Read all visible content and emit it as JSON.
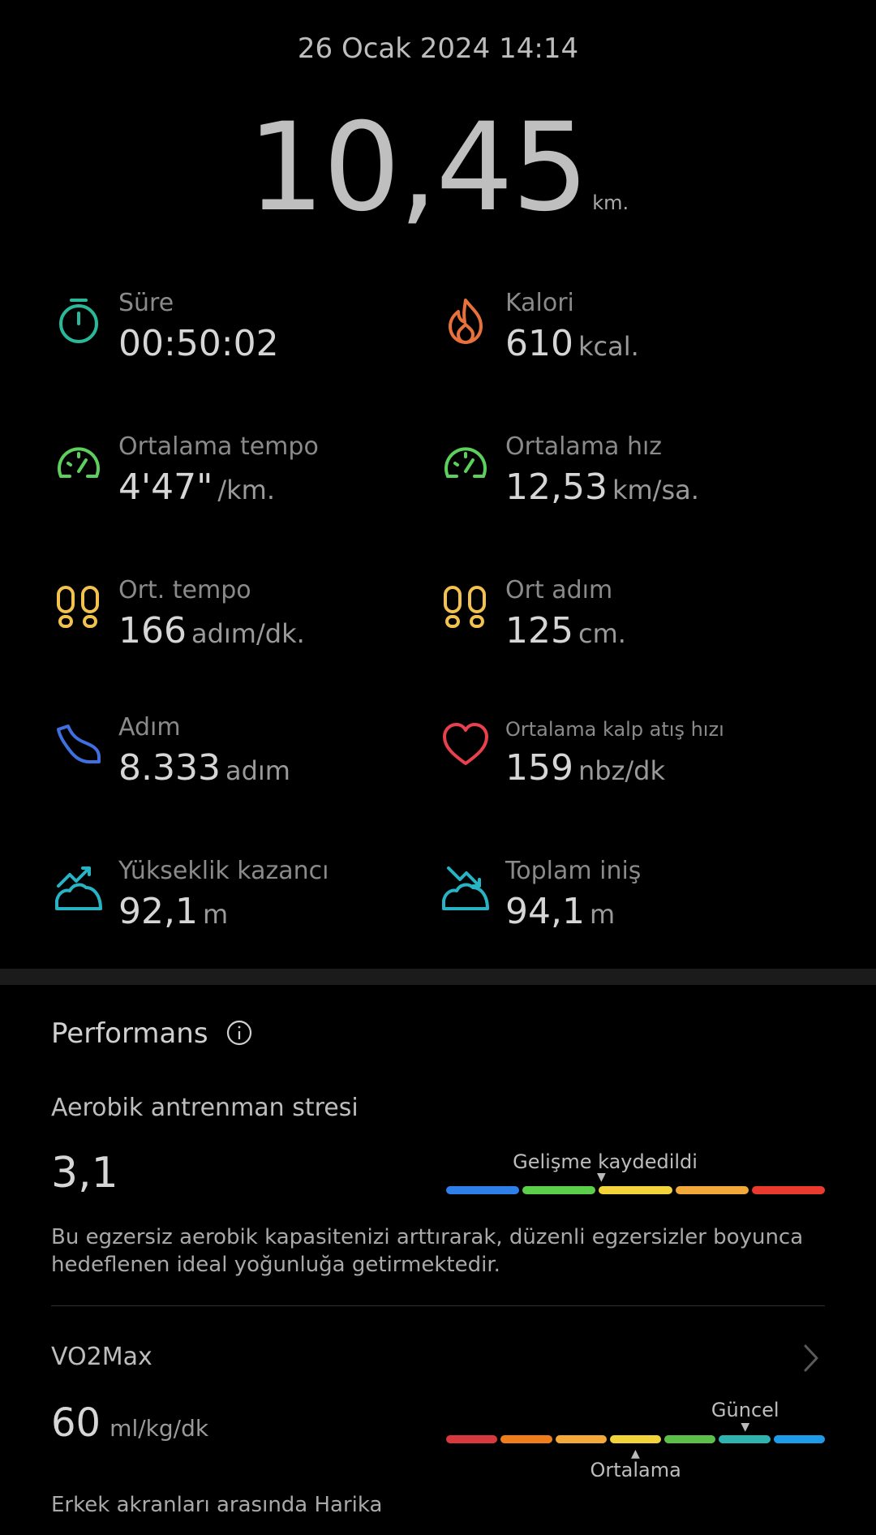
{
  "header": {
    "date": "26 Ocak 2024 14:14",
    "distance_value": "10,45",
    "distance_unit": "km."
  },
  "metrics": [
    {
      "label": "Süre",
      "value": "00:50:02",
      "unit": "",
      "icon": "stopwatch-icon",
      "color": "#2bb79a"
    },
    {
      "label": "Kalori",
      "value": "610",
      "unit": "kcal.",
      "icon": "flame-icon",
      "color": "#e8703a"
    },
    {
      "label": "Ortalama tempo",
      "value": "4'47\"",
      "unit": "/km.",
      "icon": "speedometer-icon",
      "color": "#5ccf5c"
    },
    {
      "label": "Ortalama hız",
      "value": "12,53",
      "unit": "km/sa.",
      "icon": "speedometer-icon",
      "color": "#5ccf5c"
    },
    {
      "label": "Ort. tempo",
      "value": "166",
      "unit": "adım/dk.",
      "icon": "footprints-icon",
      "color": "#f2c14e"
    },
    {
      "label": "Ort adım",
      "value": "125",
      "unit": "cm.",
      "icon": "footprints-icon",
      "color": "#f2c14e"
    },
    {
      "label": "Adım",
      "value": "8.333",
      "unit": "adım",
      "icon": "shoe-icon",
      "color": "#3f6fe0"
    },
    {
      "label": "Ortalama kalp atış hızı",
      "value": "159",
      "unit": "nbz/dk",
      "icon": "heart-icon",
      "color": "#e8404e"
    },
    {
      "label": "Yükseklik kazancı",
      "value": "92,1",
      "unit": "m",
      "icon": "elevation-gain-icon",
      "color": "#27b3c4"
    },
    {
      "label": "Toplam iniş",
      "value": "94,1",
      "unit": "m",
      "icon": "elevation-loss-icon",
      "color": "#27b3c4"
    }
  ],
  "performance": {
    "title": "Performans",
    "aerobic": {
      "label": "Aerobik antrenman stresi",
      "value": "3,1",
      "marker_label": "Gelişme kaydedildi",
      "level_fraction": 0.41,
      "scale_colors": [
        "#2f7fe8",
        "#5ccf4a",
        "#f2d43a",
        "#f2a93a",
        "#ea3a2e"
      ],
      "description": "Bu egzersiz aerobik kapasitenizi arttırarak, düzenli egzersizler boyunca hedeflenen ideal yoğunluğa getirmektedir."
    },
    "vo2max": {
      "label": "VO2Max",
      "value": "60",
      "unit": "ml/kg/dk",
      "current_label": "Güncel",
      "average_label": "Ortalama",
      "current_fraction": 0.79,
      "average_fraction": 0.5,
      "scale_colors": [
        "#d8393e",
        "#f07d1c",
        "#f2a93a",
        "#f2d43a",
        "#5cbf4a",
        "#2fb3b0",
        "#1e9be8"
      ],
      "note": "Erkek akranları arasında Harika"
    }
  }
}
